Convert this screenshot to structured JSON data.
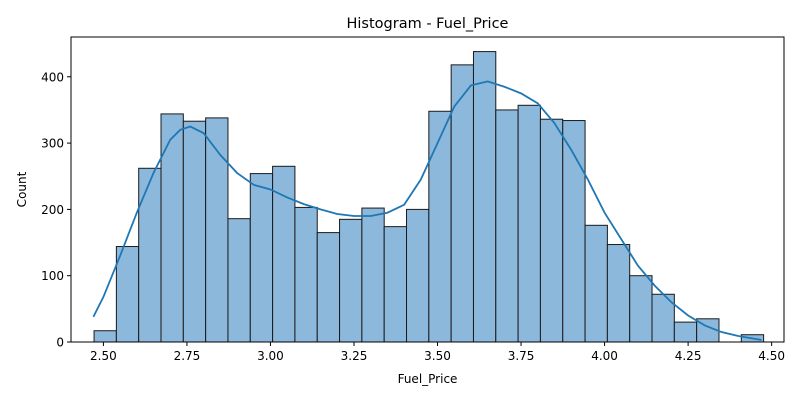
{
  "chart_data": {
    "type": "bar",
    "title": "Histogram - Fuel_Price",
    "xlabel": "Fuel_Price",
    "ylabel": "Count",
    "xlim": [
      2.403,
      4.537
    ],
    "ylim": [
      0,
      460
    ],
    "xticks": [
      2.5,
      2.75,
      3.0,
      3.25,
      3.5,
      3.75,
      4.0,
      4.25,
      4.5
    ],
    "yticks": [
      0,
      100,
      200,
      300,
      400
    ],
    "bins": [
      {
        "x0": 2.472,
        "x1": 2.5388,
        "count": 17
      },
      {
        "x0": 2.5388,
        "x1": 2.6056,
        "count": 144
      },
      {
        "x0": 2.6056,
        "x1": 2.6724,
        "count": 262
      },
      {
        "x0": 2.6724,
        "x1": 2.7392,
        "count": 344
      },
      {
        "x0": 2.7392,
        "x1": 2.806,
        "count": 333
      },
      {
        "x0": 2.806,
        "x1": 2.8728,
        "count": 338
      },
      {
        "x0": 2.8728,
        "x1": 2.9396,
        "count": 186
      },
      {
        "x0": 2.9396,
        "x1": 3.0064,
        "count": 254
      },
      {
        "x0": 3.0064,
        "x1": 3.0732,
        "count": 265
      },
      {
        "x0": 3.0732,
        "x1": 3.14,
        "count": 203
      },
      {
        "x0": 3.14,
        "x1": 3.2068,
        "count": 165
      },
      {
        "x0": 3.2068,
        "x1": 3.2736,
        "count": 185
      },
      {
        "x0": 3.2736,
        "x1": 3.3404,
        "count": 202
      },
      {
        "x0": 3.3404,
        "x1": 3.4072,
        "count": 174
      },
      {
        "x0": 3.4072,
        "x1": 3.474,
        "count": 200
      },
      {
        "x0": 3.474,
        "x1": 3.5408,
        "count": 348
      },
      {
        "x0": 3.5408,
        "x1": 3.6076,
        "count": 418
      },
      {
        "x0": 3.6076,
        "x1": 3.6744,
        "count": 438
      },
      {
        "x0": 3.6744,
        "x1": 3.7412,
        "count": 350
      },
      {
        "x0": 3.7412,
        "x1": 3.808,
        "count": 357
      },
      {
        "x0": 3.808,
        "x1": 3.8748,
        "count": 336
      },
      {
        "x0": 3.8748,
        "x1": 3.9416,
        "count": 334
      },
      {
        "x0": 3.9416,
        "x1": 4.0084,
        "count": 176
      },
      {
        "x0": 4.0084,
        "x1": 4.0752,
        "count": 147
      },
      {
        "x0": 4.0752,
        "x1": 4.142,
        "count": 100
      },
      {
        "x0": 4.142,
        "x1": 4.2088,
        "count": 72
      },
      {
        "x0": 4.2088,
        "x1": 4.2756,
        "count": 30
      },
      {
        "x0": 4.2756,
        "x1": 4.3424,
        "count": 35
      },
      {
        "x0": 4.3424,
        "x1": 4.4092,
        "count": 0
      },
      {
        "x0": 4.4092,
        "x1": 4.476,
        "count": 11
      }
    ],
    "kde": {
      "x": [
        2.47,
        2.5,
        2.55,
        2.6,
        2.65,
        2.7,
        2.73,
        2.76,
        2.8,
        2.85,
        2.9,
        2.95,
        3.0,
        3.05,
        3.1,
        3.15,
        3.2,
        3.25,
        3.3,
        3.35,
        3.4,
        3.45,
        3.5,
        3.55,
        3.6,
        3.65,
        3.7,
        3.75,
        3.8,
        3.85,
        3.9,
        3.95,
        4.0,
        4.05,
        4.1,
        4.15,
        4.2,
        4.25,
        4.3,
        4.35,
        4.4,
        4.47
      ],
      "y": [
        38,
        68,
        130,
        195,
        255,
        305,
        320,
        325,
        315,
        282,
        255,
        237,
        230,
        218,
        208,
        200,
        193,
        190,
        190,
        195,
        207,
        245,
        300,
        355,
        387,
        393,
        385,
        375,
        360,
        330,
        290,
        245,
        195,
        155,
        115,
        85,
        60,
        40,
        25,
        15,
        9,
        3
      ]
    },
    "colors": {
      "bar_fill": "#8cb8dc",
      "bar_edge": "#1a1a1a",
      "kde_line": "#1f77b4"
    },
    "grid": false,
    "legend": "none"
  }
}
